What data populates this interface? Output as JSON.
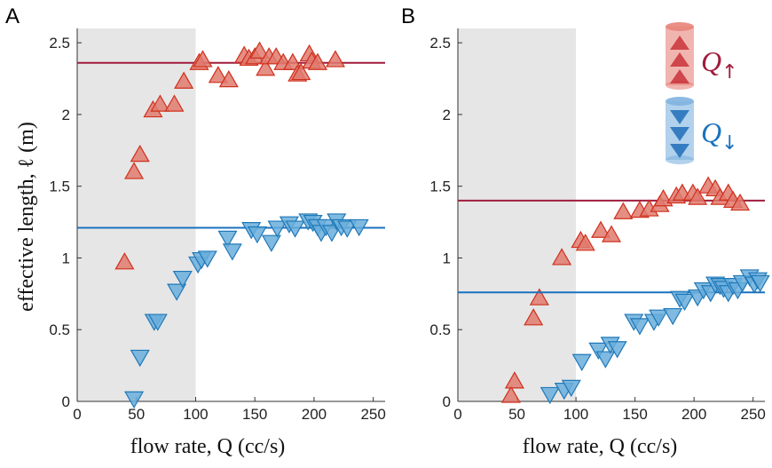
{
  "colors": {
    "up_fill": "#e07a6e",
    "up_stroke": "#d0301c",
    "up_line": "#a01c3c",
    "down_fill": "#6aaedc",
    "down_stroke": "#1f78b8",
    "down_line": "#1a72bf",
    "shade": "#e6e6e6"
  },
  "shared": {
    "ylabel": "effective length, ℓ (m)",
    "xlabel": "flow rate, Q (cc/s)"
  },
  "legend": {
    "up_label": "Q",
    "up_arrow": "↑",
    "down_label": "Q",
    "down_arrow": "↓",
    "up_icon": "red-cylinder-icon",
    "down_icon": "blue-cylinder-icon"
  },
  "chart_data": [
    {
      "panel_label": "A",
      "type": "scatter",
      "xlim": [
        0,
        260
      ],
      "ylim": [
        0,
        2.6
      ],
      "xticks": [
        0,
        50,
        100,
        150,
        200,
        250
      ],
      "yticks": [
        0,
        0.5,
        1,
        1.5,
        2,
        2.5
      ],
      "shaded_x": [
        0,
        100
      ],
      "series": [
        {
          "id": "up",
          "marker": "triangle-up",
          "hline": 2.36,
          "x": [
            40,
            48,
            53,
            64,
            70,
            82,
            90,
            103,
            106,
            119,
            128,
            141,
            145,
            150,
            154,
            159,
            162,
            168,
            174,
            182,
            186,
            189,
            196,
            198,
            203,
            218
          ],
          "y": [
            0.97,
            1.6,
            1.72,
            2.03,
            2.07,
            2.07,
            2.23,
            2.36,
            2.38,
            2.27,
            2.24,
            2.41,
            2.39,
            2.4,
            2.44,
            2.32,
            2.4,
            2.4,
            2.36,
            2.36,
            2.28,
            2.29,
            2.42,
            2.37,
            2.36,
            2.38
          ]
        },
        {
          "id": "down",
          "marker": "triangle-down",
          "hline": 1.21,
          "x": [
            48,
            53,
            65,
            68,
            84,
            89,
            102,
            105,
            110,
            127,
            131,
            147,
            152,
            164,
            169,
            179,
            184,
            195,
            199,
            203,
            206,
            210,
            215,
            219,
            223,
            228,
            238
          ],
          "y": [
            0.02,
            0.31,
            0.56,
            0.56,
            0.77,
            0.86,
            0.96,
            0.99,
            1.0,
            1.14,
            1.05,
            1.2,
            1.17,
            1.11,
            1.21,
            1.24,
            1.21,
            1.26,
            1.25,
            1.22,
            1.18,
            1.22,
            1.18,
            1.26,
            1.22,
            1.21,
            1.22
          ]
        }
      ]
    },
    {
      "panel_label": "B",
      "type": "scatter",
      "xlim": [
        0,
        260
      ],
      "ylim": [
        0,
        2.6
      ],
      "xticks": [
        0,
        50,
        100,
        150,
        200,
        250
      ],
      "yticks": [
        0,
        0.5,
        1,
        1.5,
        2,
        2.5
      ],
      "shaded_x": [
        0,
        100
      ],
      "series": [
        {
          "id": "up",
          "marker": "triangle-up",
          "hline": 1.4,
          "x": [
            45,
            48,
            64,
            69,
            88,
            104,
            108,
            121,
            130,
            140,
            154,
            162,
            171,
            174,
            185,
            190,
            199,
            203,
            212,
            218,
            222,
            229,
            233,
            239
          ],
          "y": [
            0.04,
            0.14,
            0.58,
            0.72,
            1.0,
            1.12,
            1.1,
            1.19,
            1.16,
            1.32,
            1.33,
            1.34,
            1.37,
            1.41,
            1.43,
            1.45,
            1.45,
            1.42,
            1.5,
            1.48,
            1.42,
            1.45,
            1.4,
            1.38
          ]
        },
        {
          "id": "down",
          "marker": "triangle-down",
          "hline": 0.76,
          "x": [
            78,
            90,
            96,
            105,
            119,
            125,
            129,
            135,
            149,
            154,
            166,
            170,
            182,
            188,
            192,
            203,
            208,
            214,
            218,
            222,
            225,
            229,
            233,
            237,
            241,
            247,
            251,
            254,
            256
          ],
          "y": [
            0.05,
            0.08,
            0.1,
            0.28,
            0.36,
            0.3,
            0.4,
            0.37,
            0.56,
            0.53,
            0.56,
            0.59,
            0.6,
            0.72,
            0.7,
            0.73,
            0.78,
            0.76,
            0.82,
            0.81,
            0.79,
            0.76,
            0.81,
            0.78,
            0.83,
            0.87,
            0.82,
            0.85,
            0.83
          ]
        }
      ]
    }
  ]
}
